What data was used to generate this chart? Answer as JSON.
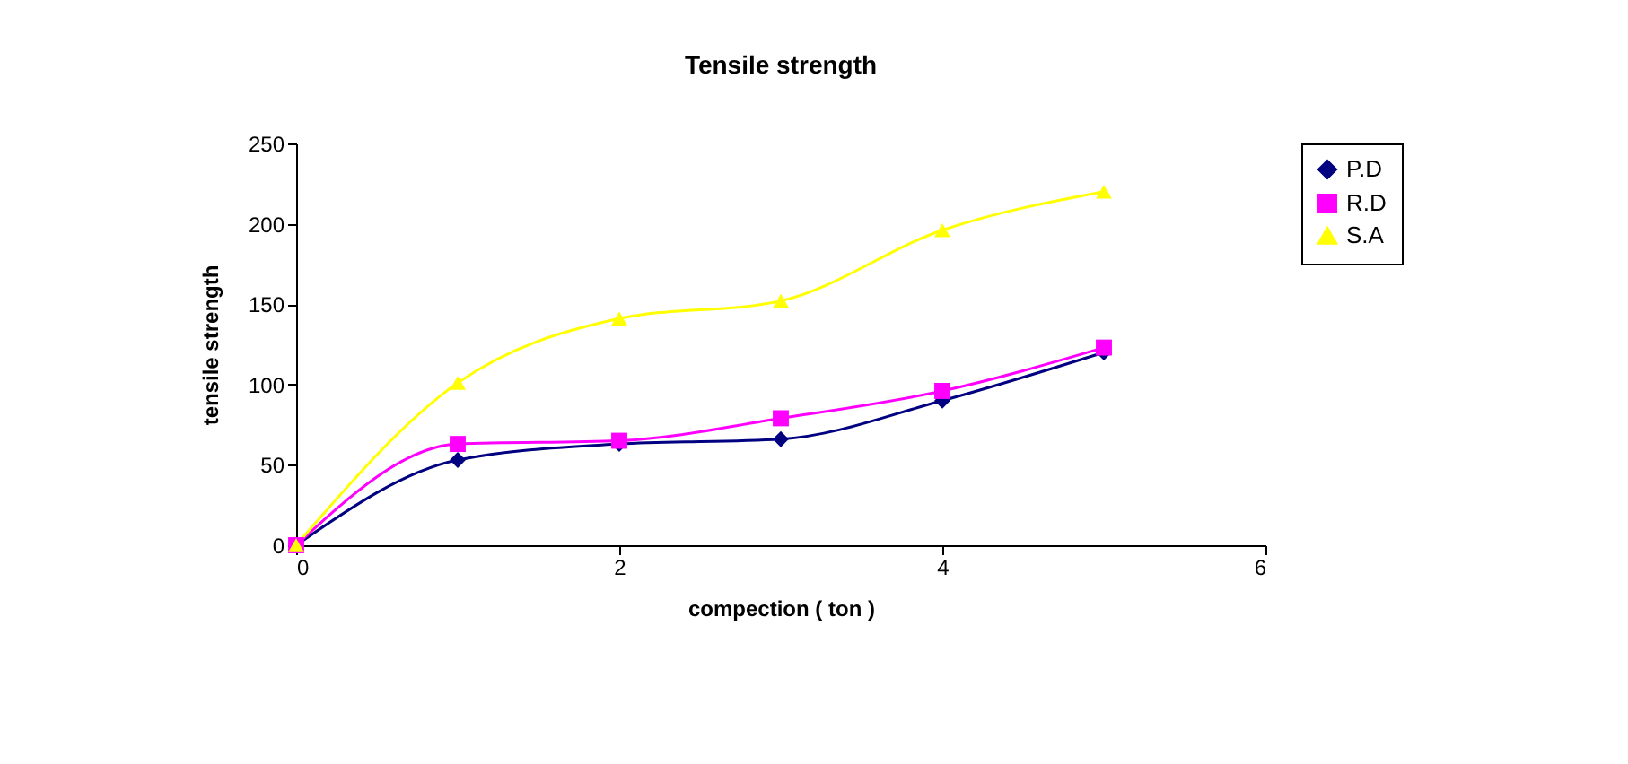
{
  "chart_data": {
    "type": "line",
    "title": "Tensile strength",
    "xlabel": "compection ( ton )",
    "ylabel": "tensile strength",
    "x": [
      0,
      1,
      2,
      3,
      4,
      5
    ],
    "series": [
      {
        "name": "P.D",
        "color": "#000080",
        "marker": "diamond",
        "values": [
          0,
          53,
          63,
          66,
          90,
          120
        ]
      },
      {
        "name": "R.D",
        "color": "#ff00ff",
        "marker": "square",
        "values": [
          0,
          63,
          65,
          79,
          96,
          123
        ]
      },
      {
        "name": "S.A",
        "color": "#ffff00",
        "marker": "triangle",
        "values": [
          0,
          101,
          141,
          152,
          196,
          220
        ]
      }
    ],
    "xlim": [
      0,
      6
    ],
    "xticks": [
      0,
      2,
      4,
      6
    ],
    "ylim": [
      0,
      250
    ],
    "yticks": [
      0,
      50,
      100,
      150,
      200,
      250
    ],
    "grid": false,
    "legend": "right",
    "line_style": "solid"
  }
}
